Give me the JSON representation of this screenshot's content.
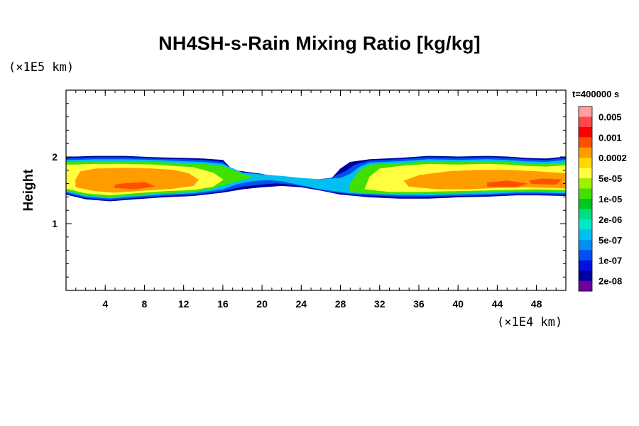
{
  "chart_data": {
    "type": "heatmap",
    "title": "NH4SH-s-Rain Mixing Ratio [kg/kg]",
    "xlabel": "",
    "ylabel": "Height",
    "x_unit": "(×1E4 km)",
    "y_unit": "(×1E5 km)",
    "time_label": "t=400000 s",
    "xlim": [
      0,
      51
    ],
    "ylim": [
      0,
      3
    ],
    "x_ticks": [
      4,
      8,
      12,
      16,
      20,
      24,
      28,
      32,
      36,
      40,
      44,
      48
    ],
    "y_ticks": [
      1,
      2
    ],
    "colorbar": {
      "labels": [
        "0.005",
        "0.001",
        "0.0002",
        "5e-05",
        "1e-05",
        "2e-06",
        "5e-07",
        "1e-07",
        "2e-08"
      ],
      "colors": [
        "#ffa0a0",
        "#ff4848",
        "#ff0000",
        "#ff5000",
        "#ff9c00",
        "#ffd800",
        "#ffff40",
        "#a0f000",
        "#40e000",
        "#00c820",
        "#00e080",
        "#00e8c8",
        "#00c0f0",
        "#0090f0",
        "#0050f0",
        "#0010e0",
        "#0000a0",
        "#7000a0"
      ]
    },
    "bands": [
      {
        "level": "2e-08",
        "color": "#0000a0",
        "pts": [
          [
            0,
            1.44
          ],
          [
            2,
            1.37
          ],
          [
            4.5,
            1.34
          ],
          [
            7,
            1.37
          ],
          [
            10,
            1.4
          ],
          [
            13,
            1.42
          ],
          [
            16,
            1.47
          ],
          [
            18,
            1.52
          ],
          [
            20,
            1.55
          ],
          [
            22,
            1.57
          ],
          [
            24,
            1.55
          ],
          [
            26,
            1.5
          ],
          [
            28,
            1.44
          ],
          [
            31,
            1.4
          ],
          [
            34,
            1.38
          ],
          [
            37,
            1.38
          ],
          [
            40,
            1.4
          ],
          [
            43,
            1.41
          ],
          [
            46,
            1.43
          ],
          [
            48,
            1.43
          ],
          [
            51,
            1.42
          ],
          [
            51,
            2.0
          ],
          [
            49,
            1.97
          ],
          [
            47,
            1.98
          ],
          [
            45,
            2.0
          ],
          [
            43,
            2.01
          ],
          [
            40,
            2.0
          ],
          [
            37,
            2.01
          ],
          [
            34,
            1.98
          ],
          [
            31,
            1.96
          ],
          [
            29,
            1.92
          ],
          [
            28,
            1.82
          ],
          [
            27,
            1.66
          ],
          [
            25,
            1.62
          ],
          [
            24,
            1.64
          ],
          [
            22,
            1.66
          ],
          [
            20,
            1.74
          ],
          [
            19,
            1.76
          ],
          [
            17,
            1.8
          ],
          [
            16,
            1.95
          ],
          [
            14,
            1.97
          ],
          [
            12,
            1.98
          ],
          [
            9,
            1.99
          ],
          [
            6,
            2.01
          ],
          [
            3,
            2.01
          ],
          [
            1,
            2.0
          ],
          [
            0,
            2.0
          ]
        ]
      },
      {
        "level": "1e-07",
        "color": "#0050f0",
        "pts": [
          [
            0,
            1.46
          ],
          [
            2,
            1.39
          ],
          [
            4.5,
            1.36
          ],
          [
            7,
            1.39
          ],
          [
            10,
            1.42
          ],
          [
            13,
            1.44
          ],
          [
            16,
            1.49
          ],
          [
            18,
            1.56
          ],
          [
            20,
            1.59
          ],
          [
            21.5,
            1.61
          ],
          [
            23,
            1.59
          ],
          [
            25,
            1.54
          ],
          [
            27,
            1.48
          ],
          [
            30,
            1.43
          ],
          [
            34,
            1.41
          ],
          [
            37,
            1.41
          ],
          [
            40,
            1.42
          ],
          [
            43,
            1.43
          ],
          [
            46,
            1.45
          ],
          [
            48,
            1.45
          ],
          [
            51,
            1.44
          ],
          [
            51,
            1.98
          ],
          [
            49,
            1.95
          ],
          [
            47,
            1.96
          ],
          [
            45,
            1.98
          ],
          [
            43,
            1.99
          ],
          [
            40,
            1.98
          ],
          [
            37,
            1.99
          ],
          [
            34,
            1.96
          ],
          [
            31,
            1.94
          ],
          [
            29.5,
            1.88
          ],
          [
            28.5,
            1.78
          ],
          [
            27,
            1.68
          ],
          [
            25,
            1.65
          ],
          [
            23,
            1.67
          ],
          [
            21,
            1.72
          ],
          [
            19,
            1.75
          ],
          [
            17,
            1.78
          ],
          [
            16,
            1.92
          ],
          [
            14,
            1.95
          ],
          [
            12,
            1.96
          ],
          [
            9,
            1.97
          ],
          [
            6,
            1.99
          ],
          [
            3,
            1.99
          ],
          [
            1,
            1.98
          ],
          [
            0,
            1.98
          ]
        ]
      },
      {
        "level": "5e-07",
        "color": "#00c0f0",
        "pts": [
          [
            0,
            1.48
          ],
          [
            2,
            1.41
          ],
          [
            4.5,
            1.38
          ],
          [
            7,
            1.41
          ],
          [
            10,
            1.44
          ],
          [
            13,
            1.46
          ],
          [
            16,
            1.52
          ],
          [
            17.5,
            1.6
          ],
          [
            19,
            1.64
          ],
          [
            20.5,
            1.66
          ],
          [
            22,
            1.64
          ],
          [
            24,
            1.58
          ],
          [
            26,
            1.52
          ],
          [
            29,
            1.46
          ],
          [
            34,
            1.43
          ],
          [
            37,
            1.43
          ],
          [
            40,
            1.44
          ],
          [
            43,
            1.45
          ],
          [
            46,
            1.47
          ],
          [
            48,
            1.47
          ],
          [
            51,
            1.46
          ],
          [
            51,
            1.95
          ],
          [
            49,
            1.92
          ],
          [
            47,
            1.93
          ],
          [
            45,
            1.95
          ],
          [
            43,
            1.96
          ],
          [
            40,
            1.95
          ],
          [
            37,
            1.96
          ],
          [
            34,
            1.93
          ],
          [
            31,
            1.91
          ],
          [
            30,
            1.85
          ],
          [
            29,
            1.74
          ],
          [
            28,
            1.68
          ],
          [
            26,
            1.66
          ],
          [
            24,
            1.68
          ],
          [
            22,
            1.71
          ],
          [
            20,
            1.73
          ],
          [
            18,
            1.76
          ],
          [
            16,
            1.89
          ],
          [
            14,
            1.92
          ],
          [
            12,
            1.93
          ],
          [
            9,
            1.95
          ],
          [
            6,
            1.96
          ],
          [
            3,
            1.96
          ],
          [
            1,
            1.95
          ],
          [
            0,
            1.95
          ]
        ]
      },
      {
        "level": "1e-05",
        "color": "#40e000",
        "pts": [
          [
            0,
            1.5
          ],
          [
            2,
            1.43
          ],
          [
            4.5,
            1.4
          ],
          [
            7,
            1.43
          ],
          [
            10,
            1.46
          ],
          [
            13,
            1.48
          ],
          [
            15,
            1.53
          ],
          [
            16.5,
            1.6
          ],
          [
            18,
            1.66
          ],
          [
            19,
            1.7
          ],
          [
            18,
            1.74
          ],
          [
            16,
            1.86
          ],
          [
            14,
            1.89
          ],
          [
            12,
            1.9
          ],
          [
            9,
            1.92
          ],
          [
            6,
            1.93
          ],
          [
            3,
            1.93
          ],
          [
            1,
            1.92
          ],
          [
            0,
            1.92
          ]
        ]
      },
      {
        "level": "1e-05",
        "color": "#40e000",
        "pts": [
          [
            29,
            1.48
          ],
          [
            32,
            1.45
          ],
          [
            35,
            1.45
          ],
          [
            38,
            1.46
          ],
          [
            41,
            1.47
          ],
          [
            44,
            1.48
          ],
          [
            47,
            1.49
          ],
          [
            49,
            1.49
          ],
          [
            51,
            1.48
          ],
          [
            51,
            1.91
          ],
          [
            49,
            1.89
          ],
          [
            47,
            1.9
          ],
          [
            45,
            1.92
          ],
          [
            43,
            1.93
          ],
          [
            40,
            1.92
          ],
          [
            37,
            1.93
          ],
          [
            34,
            1.9
          ],
          [
            31,
            1.88
          ],
          [
            30,
            1.8
          ],
          [
            29.5,
            1.7
          ],
          [
            29,
            1.6
          ]
        ]
      },
      {
        "level": "5e-05",
        "color": "#ffff40",
        "pts": [
          [
            0,
            1.53
          ],
          [
            2,
            1.46
          ],
          [
            4.5,
            1.43
          ],
          [
            7,
            1.46
          ],
          [
            10,
            1.49
          ],
          [
            13,
            1.51
          ],
          [
            15,
            1.56
          ],
          [
            16,
            1.66
          ],
          [
            15,
            1.76
          ],
          [
            13,
            1.84
          ],
          [
            11,
            1.86
          ],
          [
            9,
            1.88
          ],
          [
            6,
            1.89
          ],
          [
            3,
            1.89
          ],
          [
            1,
            1.88
          ],
          [
            0,
            1.88
          ]
        ]
      },
      {
        "level": "5e-05",
        "color": "#ffff40",
        "pts": [
          [
            30.5,
            1.52
          ],
          [
            33,
            1.48
          ],
          [
            36,
            1.48
          ],
          [
            39,
            1.49
          ],
          [
            42,
            1.5
          ],
          [
            45,
            1.51
          ],
          [
            48,
            1.52
          ],
          [
            51,
            1.51
          ],
          [
            51,
            1.87
          ],
          [
            49,
            1.85
          ],
          [
            47,
            1.86
          ],
          [
            45,
            1.88
          ],
          [
            43,
            1.89
          ],
          [
            40,
            1.88
          ],
          [
            37,
            1.89
          ],
          [
            34,
            1.86
          ],
          [
            32,
            1.82
          ],
          [
            31,
            1.7
          ]
        ]
      },
      {
        "level": "0.0002",
        "color": "#ff9c00",
        "pts": [
          [
            1,
            1.55
          ],
          [
            3,
            1.49
          ],
          [
            5,
            1.47
          ],
          [
            8,
            1.5
          ],
          [
            11,
            1.53
          ],
          [
            13,
            1.57
          ],
          [
            13.5,
            1.66
          ],
          [
            12.5,
            1.75
          ],
          [
            11,
            1.8
          ],
          [
            9,
            1.82
          ],
          [
            6,
            1.83
          ],
          [
            3,
            1.82
          ],
          [
            1.5,
            1.78
          ],
          [
            1,
            1.66
          ]
        ]
      },
      {
        "level": "0.0002",
        "color": "#ff9c00",
        "pts": [
          [
            35,
            1.56
          ],
          [
            38,
            1.52
          ],
          [
            41,
            1.52
          ],
          [
            44,
            1.54
          ],
          [
            47,
            1.55
          ],
          [
            50,
            1.54
          ],
          [
            51,
            1.53
          ],
          [
            51,
            1.75
          ],
          [
            48,
            1.78
          ],
          [
            45,
            1.8
          ],
          [
            42,
            1.8
          ],
          [
            39,
            1.78
          ],
          [
            36,
            1.72
          ],
          [
            34.5,
            1.64
          ]
        ]
      },
      {
        "level": "0.001",
        "color": "#ff5000",
        "pts": [
          [
            5,
            1.54
          ],
          [
            7,
            1.52
          ],
          [
            9,
            1.56
          ],
          [
            8,
            1.62
          ],
          [
            6,
            1.6
          ],
          [
            5,
            1.58
          ]
        ]
      },
      {
        "level": "0.001",
        "color": "#ff5000",
        "pts": [
          [
            43,
            1.56
          ],
          [
            46,
            1.55
          ],
          [
            47,
            1.6
          ],
          [
            45,
            1.64
          ],
          [
            43,
            1.61
          ]
        ]
      },
      {
        "level": "0.001",
        "color": "#ff5000",
        "pts": [
          [
            47.5,
            1.6
          ],
          [
            50,
            1.59
          ],
          [
            50.5,
            1.66
          ],
          [
            48.5,
            1.67
          ],
          [
            47.3,
            1.64
          ]
        ]
      }
    ]
  }
}
